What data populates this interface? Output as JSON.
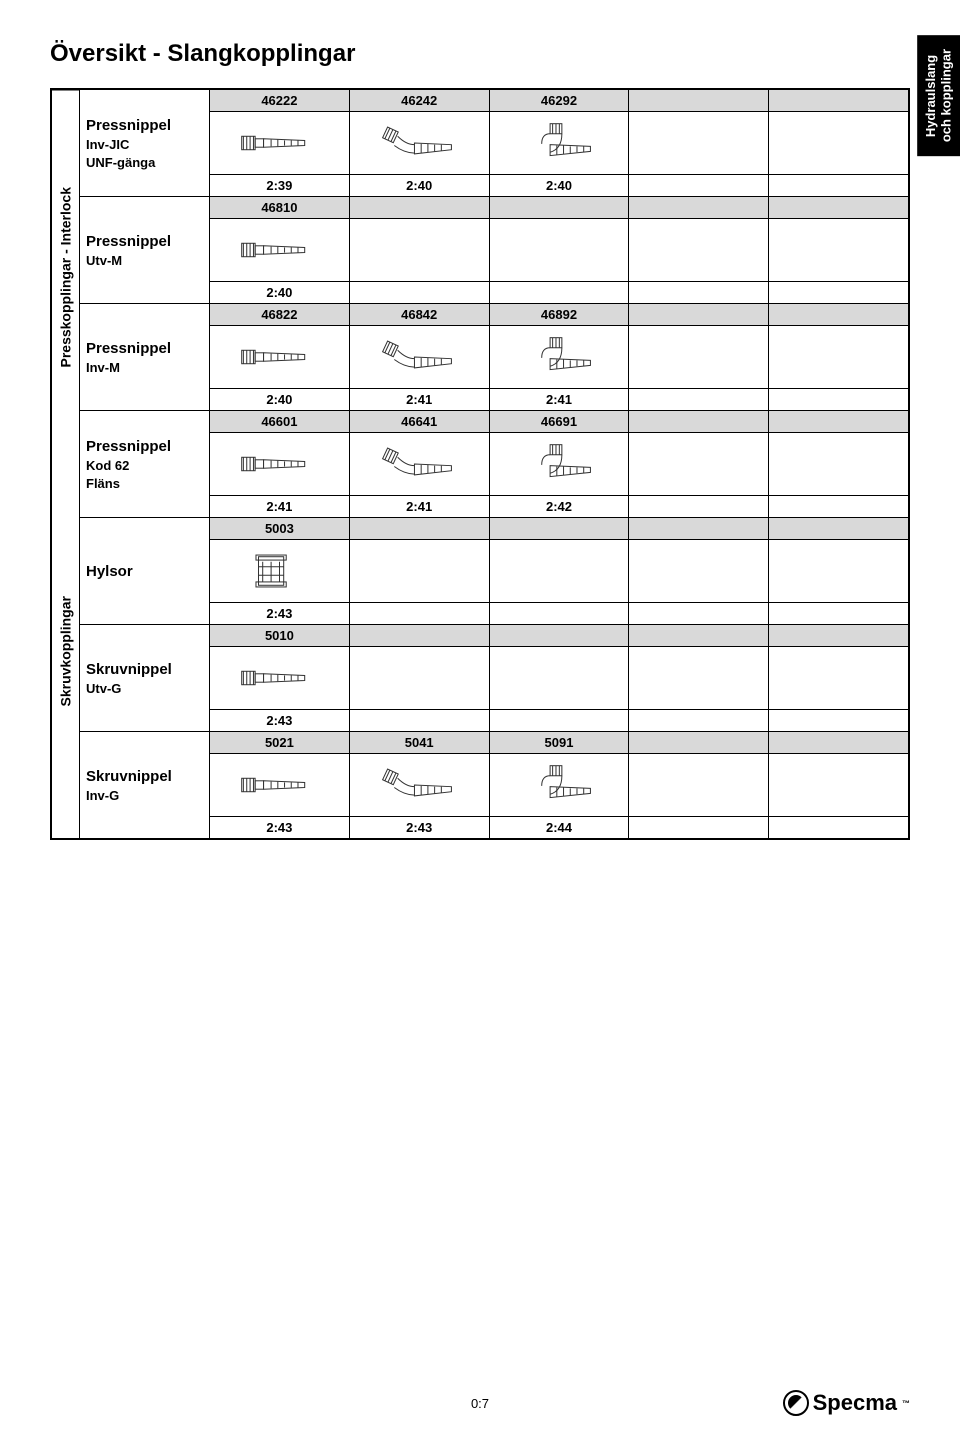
{
  "title": "Översikt - Slangkopplingar",
  "side_tab": {
    "line1": "Hydraulslang",
    "line2": "och kopplingar"
  },
  "groups": [
    {
      "vlabel": "Presskopplingar - Interlock",
      "sections": [
        {
          "name": "Pressnippel",
          "subs": [
            "Inv-JIC",
            "UNF-gänga"
          ],
          "codes": [
            "46222",
            "46242",
            "46292",
            "",
            ""
          ],
          "images": [
            "straight",
            "elbow45",
            "elbow90",
            "",
            ""
          ],
          "refs": [
            "2:39",
            "2:40",
            "2:40",
            "",
            ""
          ]
        },
        {
          "name": "Pressnippel",
          "subs": [
            "Utv-M"
          ],
          "codes": [
            "46810",
            "",
            "",
            "",
            ""
          ],
          "images": [
            "straight",
            "",
            "",
            "",
            ""
          ],
          "refs": [
            "2:40",
            "",
            "",
            "",
            ""
          ]
        },
        {
          "name": "Pressnippel",
          "subs": [
            "Inv-M"
          ],
          "codes": [
            "46822",
            "46842",
            "46892",
            "",
            ""
          ],
          "images": [
            "straight",
            "elbow45",
            "elbow90",
            "",
            ""
          ],
          "refs": [
            "2:40",
            "2:41",
            "2:41",
            "",
            ""
          ]
        },
        {
          "name": "Pressnippel",
          "subs": [
            "Kod 62",
            "Fläns"
          ],
          "codes": [
            "46601",
            "46641",
            "46691",
            "",
            ""
          ],
          "images": [
            "straight",
            "elbow45",
            "elbow90",
            "",
            ""
          ],
          "refs": [
            "2:41",
            "2:41",
            "2:42",
            "",
            ""
          ]
        }
      ]
    },
    {
      "vlabel": "Skruvkopplingar",
      "sections": [
        {
          "name": "Hylsor",
          "subs": [],
          "codes": [
            "5003",
            "",
            "",
            "",
            ""
          ],
          "images": [
            "sleeve",
            "",
            "",
            "",
            ""
          ],
          "refs": [
            "2:43",
            "",
            "",
            "",
            ""
          ]
        },
        {
          "name": "Skruvnippel",
          "subs": [
            "Utv-G"
          ],
          "codes": [
            "5010",
            "",
            "",
            "",
            ""
          ],
          "images": [
            "straight",
            "",
            "",
            "",
            ""
          ],
          "refs": [
            "2:43",
            "",
            "",
            "",
            ""
          ]
        },
        {
          "name": "Skruvnippel",
          "subs": [
            "Inv-G"
          ],
          "codes": [
            "5021",
            "5041",
            "5091",
            "",
            ""
          ],
          "images": [
            "straight",
            "elbow45",
            "elbow90",
            "",
            ""
          ],
          "refs": [
            "2:43",
            "2:43",
            "2:44",
            "",
            ""
          ]
        }
      ]
    }
  ],
  "page_num": "0:7",
  "logo_text": "Specma",
  "columns": 5,
  "colors": {
    "header_bg": "#d9d9d9",
    "border": "#000000",
    "bg": "#ffffff",
    "side_tab_bg": "#000000",
    "side_tab_fg": "#ffffff"
  },
  "typography": {
    "title_pt": 24,
    "label_pt": 15,
    "sub_pt": 13,
    "cell_pt": 13
  }
}
